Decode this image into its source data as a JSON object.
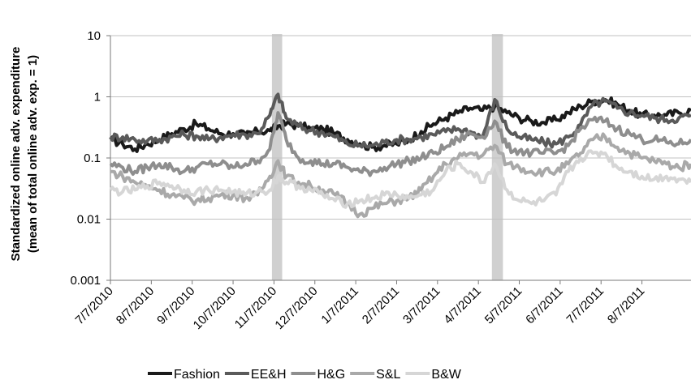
{
  "chart_data": {
    "type": "line",
    "title": "",
    "xlabel": "",
    "ylabel_line1": "Standardized online adv. expenditure",
    "ylabel_line2": "(mean of total online adv. exp. = 1)",
    "yscale": "log",
    "ylim": [
      0.001,
      10
    ],
    "y_ticks": [
      {
        "value": 10,
        "label": "10"
      },
      {
        "value": 1,
        "label": "1"
      },
      {
        "value": 0.1,
        "label": "0.1"
      },
      {
        "value": 0.01,
        "label": "0.01"
      },
      {
        "value": 0.001,
        "label": "0.001"
      }
    ],
    "x_ticks": [
      "7/7/2010",
      "8/7/2010",
      "9/7/2010",
      "10/7/2010",
      "11/7/2010",
      "12/7/2010",
      "1/7/2011",
      "2/7/2011",
      "3/7/2011",
      "4/7/2011",
      "5/7/2011",
      "6/7/2011",
      "7/7/2011",
      "8/7/2011"
    ],
    "x_range": [
      0,
      14.2
    ],
    "grid": "horizontal",
    "legend_position": "bottom",
    "shaded_periods": [
      [
        3.95,
        4.2
      ],
      [
        9.33,
        9.6
      ]
    ],
    "series": [
      {
        "name": "Fashion",
        "color": "#1a1a1a",
        "width": 4,
        "points": [
          [
            0,
            0.2
          ],
          [
            0.3,
            0.17
          ],
          [
            0.6,
            0.14
          ],
          [
            0.9,
            0.17
          ],
          [
            1.2,
            0.2
          ],
          [
            1.5,
            0.25
          ],
          [
            1.8,
            0.3
          ],
          [
            2.1,
            0.36
          ],
          [
            2.4,
            0.3
          ],
          [
            2.7,
            0.25
          ],
          [
            3.0,
            0.25
          ],
          [
            3.3,
            0.24
          ],
          [
            3.6,
            0.27
          ],
          [
            3.9,
            0.28
          ],
          [
            4.1,
            0.33
          ],
          [
            4.3,
            0.36
          ],
          [
            4.6,
            0.34
          ],
          [
            4.9,
            0.3
          ],
          [
            5.2,
            0.3
          ],
          [
            5.5,
            0.25
          ],
          [
            5.8,
            0.2
          ],
          [
            6.1,
            0.17
          ],
          [
            6.4,
            0.15
          ],
          [
            6.7,
            0.16
          ],
          [
            7.0,
            0.17
          ],
          [
            7.3,
            0.2
          ],
          [
            7.6,
            0.27
          ],
          [
            7.9,
            0.36
          ],
          [
            8.2,
            0.45
          ],
          [
            8.5,
            0.55
          ],
          [
            8.8,
            0.65
          ],
          [
            9.1,
            0.6
          ],
          [
            9.4,
            0.7
          ],
          [
            9.7,
            0.55
          ],
          [
            10.0,
            0.45
          ],
          [
            10.3,
            0.4
          ],
          [
            10.6,
            0.38
          ],
          [
            10.9,
            0.42
          ],
          [
            11.2,
            0.55
          ],
          [
            11.5,
            0.7
          ],
          [
            11.8,
            0.85
          ],
          [
            12.1,
            0.9
          ],
          [
            12.4,
            0.75
          ],
          [
            12.7,
            0.6
          ],
          [
            13.0,
            0.5
          ],
          [
            13.3,
            0.5
          ],
          [
            13.6,
            0.5
          ],
          [
            13.9,
            0.55
          ],
          [
            14.2,
            0.6
          ]
        ]
      },
      {
        "name": "EE&H",
        "color": "#5a5a5a",
        "width": 4,
        "points": [
          [
            0,
            0.22
          ],
          [
            0.3,
            0.22
          ],
          [
            0.6,
            0.2
          ],
          [
            0.9,
            0.19
          ],
          [
            1.2,
            0.2
          ],
          [
            1.5,
            0.22
          ],
          [
            1.8,
            0.24
          ],
          [
            2.1,
            0.23
          ],
          [
            2.4,
            0.2
          ],
          [
            2.7,
            0.22
          ],
          [
            3.0,
            0.24
          ],
          [
            3.3,
            0.24
          ],
          [
            3.6,
            0.25
          ],
          [
            3.9,
            0.5
          ],
          [
            4.1,
            1.1
          ],
          [
            4.3,
            0.45
          ],
          [
            4.6,
            0.33
          ],
          [
            4.9,
            0.28
          ],
          [
            5.2,
            0.26
          ],
          [
            5.5,
            0.22
          ],
          [
            5.8,
            0.17
          ],
          [
            6.1,
            0.16
          ],
          [
            6.4,
            0.16
          ],
          [
            6.7,
            0.18
          ],
          [
            7.0,
            0.2
          ],
          [
            7.3,
            0.2
          ],
          [
            7.6,
            0.22
          ],
          [
            7.9,
            0.24
          ],
          [
            8.2,
            0.27
          ],
          [
            8.5,
            0.3
          ],
          [
            8.8,
            0.27
          ],
          [
            9.1,
            0.22
          ],
          [
            9.4,
            0.9
          ],
          [
            9.7,
            0.3
          ],
          [
            10.0,
            0.22
          ],
          [
            10.3,
            0.2
          ],
          [
            10.6,
            0.18
          ],
          [
            10.9,
            0.17
          ],
          [
            11.2,
            0.22
          ],
          [
            11.5,
            0.35
          ],
          [
            11.8,
            0.75
          ],
          [
            12.1,
            0.85
          ],
          [
            12.4,
            0.65
          ],
          [
            12.7,
            0.55
          ],
          [
            13.0,
            0.5
          ],
          [
            13.3,
            0.45
          ],
          [
            13.6,
            0.42
          ],
          [
            13.9,
            0.45
          ],
          [
            14.2,
            0.5
          ]
        ]
      },
      {
        "name": "H&G",
        "color": "#8e8e8e",
        "width": 4,
        "points": [
          [
            0,
            0.08
          ],
          [
            0.3,
            0.07
          ],
          [
            0.6,
            0.06
          ],
          [
            0.9,
            0.07
          ],
          [
            1.2,
            0.08
          ],
          [
            1.5,
            0.07
          ],
          [
            1.8,
            0.06
          ],
          [
            2.1,
            0.07
          ],
          [
            2.4,
            0.08
          ],
          [
            2.7,
            0.08
          ],
          [
            3.0,
            0.07
          ],
          [
            3.3,
            0.08
          ],
          [
            3.6,
            0.09
          ],
          [
            3.9,
            0.14
          ],
          [
            4.1,
            0.55
          ],
          [
            4.3,
            0.2
          ],
          [
            4.6,
            0.1
          ],
          [
            4.9,
            0.09
          ],
          [
            5.2,
            0.08
          ],
          [
            5.5,
            0.08
          ],
          [
            5.8,
            0.07
          ],
          [
            6.1,
            0.06
          ],
          [
            6.4,
            0.06
          ],
          [
            6.7,
            0.07
          ],
          [
            7.0,
            0.08
          ],
          [
            7.3,
            0.09
          ],
          [
            7.6,
            0.1
          ],
          [
            7.9,
            0.12
          ],
          [
            8.2,
            0.15
          ],
          [
            8.5,
            0.2
          ],
          [
            8.8,
            0.25
          ],
          [
            9.1,
            0.22
          ],
          [
            9.4,
            0.4
          ],
          [
            9.7,
            0.15
          ],
          [
            10.0,
            0.13
          ],
          [
            10.3,
            0.12
          ],
          [
            10.6,
            0.12
          ],
          [
            10.9,
            0.12
          ],
          [
            11.2,
            0.16
          ],
          [
            11.5,
            0.3
          ],
          [
            11.8,
            0.42
          ],
          [
            12.1,
            0.4
          ],
          [
            12.4,
            0.3
          ],
          [
            12.7,
            0.25
          ],
          [
            13.0,
            0.2
          ],
          [
            13.3,
            0.2
          ],
          [
            13.6,
            0.18
          ],
          [
            13.9,
            0.17
          ],
          [
            14.2,
            0.2
          ]
        ]
      },
      {
        "name": "S&L",
        "color": "#a9a9a9",
        "width": 4,
        "points": [
          [
            0,
            0.06
          ],
          [
            0.3,
            0.05
          ],
          [
            0.6,
            0.04
          ],
          [
            0.9,
            0.035
          ],
          [
            1.2,
            0.03
          ],
          [
            1.5,
            0.025
          ],
          [
            1.8,
            0.022
          ],
          [
            2.1,
            0.02
          ],
          [
            2.4,
            0.022
          ],
          [
            2.7,
            0.025
          ],
          [
            3.0,
            0.025
          ],
          [
            3.3,
            0.022
          ],
          [
            3.6,
            0.025
          ],
          [
            3.9,
            0.05
          ],
          [
            4.1,
            0.09
          ],
          [
            4.3,
            0.05
          ],
          [
            4.6,
            0.04
          ],
          [
            4.9,
            0.035
          ],
          [
            5.2,
            0.03
          ],
          [
            5.5,
            0.025
          ],
          [
            5.8,
            0.018
          ],
          [
            6.1,
            0.012
          ],
          [
            6.4,
            0.015
          ],
          [
            6.7,
            0.018
          ],
          [
            7.0,
            0.02
          ],
          [
            7.3,
            0.022
          ],
          [
            7.6,
            0.03
          ],
          [
            7.9,
            0.05
          ],
          [
            8.2,
            0.08
          ],
          [
            8.5,
            0.1
          ],
          [
            8.8,
            0.12
          ],
          [
            9.1,
            0.11
          ],
          [
            9.4,
            0.16
          ],
          [
            9.7,
            0.08
          ],
          [
            10.0,
            0.07
          ],
          [
            10.3,
            0.06
          ],
          [
            10.6,
            0.06
          ],
          [
            10.9,
            0.06
          ],
          [
            11.2,
            0.08
          ],
          [
            11.5,
            0.12
          ],
          [
            11.8,
            0.2
          ],
          [
            12.1,
            0.22
          ],
          [
            12.4,
            0.15
          ],
          [
            12.7,
            0.12
          ],
          [
            13.0,
            0.1
          ],
          [
            13.3,
            0.09
          ],
          [
            13.6,
            0.08
          ],
          [
            13.9,
            0.07
          ],
          [
            14.2,
            0.08
          ]
        ]
      },
      {
        "name": "B&W",
        "color": "#d6d6d6",
        "width": 4,
        "points": [
          [
            0,
            0.03
          ],
          [
            0.3,
            0.028
          ],
          [
            0.6,
            0.03
          ],
          [
            0.9,
            0.035
          ],
          [
            1.2,
            0.04
          ],
          [
            1.5,
            0.035
          ],
          [
            1.8,
            0.03
          ],
          [
            2.1,
            0.028
          ],
          [
            2.4,
            0.03
          ],
          [
            2.7,
            0.03
          ],
          [
            3.0,
            0.028
          ],
          [
            3.3,
            0.025
          ],
          [
            3.6,
            0.028
          ],
          [
            3.9,
            0.03
          ],
          [
            4.1,
            0.05
          ],
          [
            4.3,
            0.04
          ],
          [
            4.6,
            0.035
          ],
          [
            4.9,
            0.03
          ],
          [
            5.2,
            0.025
          ],
          [
            5.5,
            0.02
          ],
          [
            5.8,
            0.018
          ],
          [
            6.1,
            0.02
          ],
          [
            6.4,
            0.022
          ],
          [
            6.7,
            0.025
          ],
          [
            7.0,
            0.025
          ],
          [
            7.3,
            0.022
          ],
          [
            7.6,
            0.025
          ],
          [
            7.9,
            0.03
          ],
          [
            8.2,
            0.06
          ],
          [
            8.5,
            0.08
          ],
          [
            8.8,
            0.06
          ],
          [
            9.1,
            0.04
          ],
          [
            9.4,
            0.08
          ],
          [
            9.7,
            0.03
          ],
          [
            10.0,
            0.02
          ],
          [
            10.3,
            0.018
          ],
          [
            10.6,
            0.02
          ],
          [
            10.9,
            0.025
          ],
          [
            11.2,
            0.06
          ],
          [
            11.5,
            0.1
          ],
          [
            11.8,
            0.12
          ],
          [
            12.1,
            0.12
          ],
          [
            12.4,
            0.07
          ],
          [
            12.7,
            0.06
          ],
          [
            13.0,
            0.05
          ],
          [
            13.3,
            0.045
          ],
          [
            13.6,
            0.05
          ],
          [
            13.9,
            0.045
          ],
          [
            14.2,
            0.04
          ]
        ]
      }
    ]
  }
}
